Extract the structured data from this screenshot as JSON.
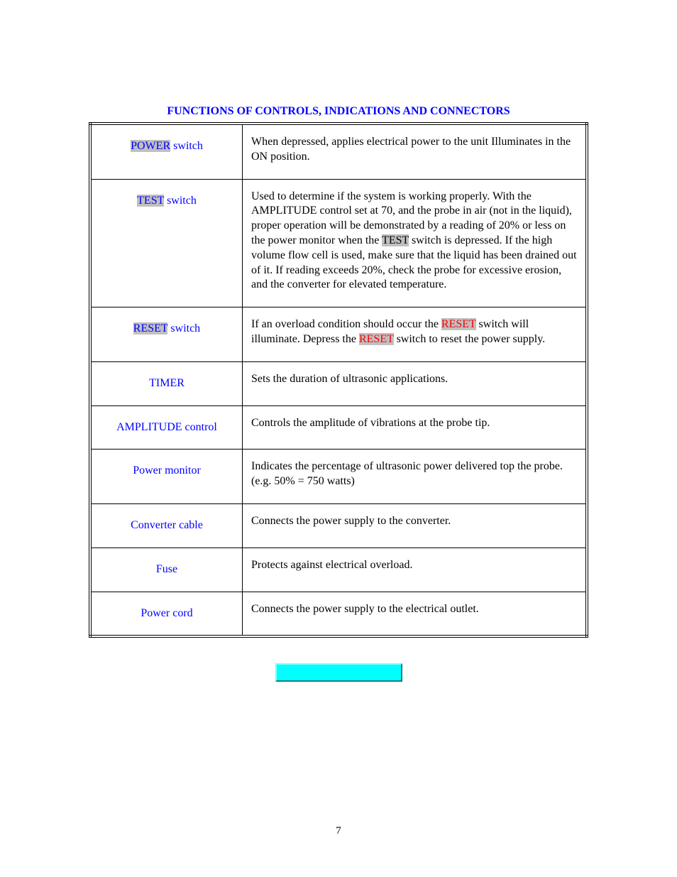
{
  "title": "FUNCTIONS OF CONTROLS, INDICATIONS AND CONNECTORS",
  "rows": [
    {
      "label_hl": "POWER",
      "label_rest": " switch",
      "desc_parts": [
        {
          "t": "When depressed, applies electrical power to the unit Illuminates in the ON position."
        }
      ]
    },
    {
      "label_hl": "TEST",
      "label_rest": " switch",
      "desc_parts": [
        {
          "t": "Used to determine if the system is working properly. With the AMPLITUDE control set at 70, and the probe in air (not in the liquid), proper operation will be demonstrated by a reading of 20% or less on the power monitor when the "
        },
        {
          "t": "TEST",
          "hl": true
        },
        {
          "t": " switch is depressed. If the high volume flow cell is used, make sure that the liquid has been drained out of it. If reading exceeds 20%, check the probe for excessive erosion, and the converter for elevated temperature."
        }
      ]
    },
    {
      "label_hl": "RESET",
      "label_rest": " switch",
      "desc_parts": [
        {
          "t": "If an overload condition should occur the "
        },
        {
          "t": "RESET",
          "hl_red": true
        },
        {
          "t": " switch will illuminate. Depress the "
        },
        {
          "t": "RESET",
          "hl_red": true
        },
        {
          "t": " switch to reset the power supply."
        }
      ]
    },
    {
      "label_plain": "TIMER",
      "desc_parts": [
        {
          "t": "Sets the duration of ultrasonic applications."
        }
      ]
    },
    {
      "label_plain": "AMPLITUDE control",
      "desc_parts": [
        {
          "t": "Controls the amplitude of vibrations at the probe tip."
        }
      ]
    },
    {
      "label_plain": "Power monitor",
      "desc_parts": [
        {
          "t": "Indicates the percentage of ultrasonic power delivered top the probe. (e.g. 50% = 750 watts)"
        }
      ]
    },
    {
      "label_plain": "Converter cable",
      "desc_parts": [
        {
          "t": "Connects the power supply to the converter."
        }
      ]
    },
    {
      "label_plain": "Fuse",
      "desc_parts": [
        {
          "t": "Protects against electrical overload."
        }
      ]
    },
    {
      "label_plain": "Power cord",
      "desc_parts": [
        {
          "t": "Connects the power supply to the electrical outlet."
        }
      ]
    }
  ],
  "page_number": "7",
  "colors": {
    "link_blue": "#0000ff",
    "highlight_bg": "#c0c0c0",
    "highlight_red": "#ff0000",
    "button_bg": "#00ffff"
  }
}
